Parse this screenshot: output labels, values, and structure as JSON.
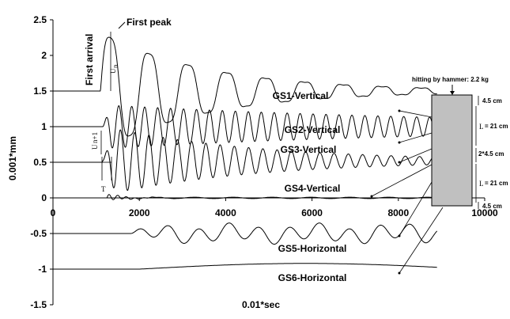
{
  "chart_data": {
    "type": "line",
    "xlabel": "0.01*sec",
    "ylabel": "0.001*mm",
    "xlim": [
      0,
      10000
    ],
    "ylim": [
      -1.5,
      2.5
    ],
    "x_ticks": [
      "0",
      "2000",
      "4000",
      "6000",
      "8000",
      "10000"
    ],
    "y_ticks": [
      "2.5",
      "2",
      "1.5",
      "1",
      "0.5",
      "0",
      "-0.5",
      "-1",
      "-1.5"
    ],
    "series": [
      {
        "name": "GS1-Vertical",
        "offset": 1.5,
        "onset": 1100,
        "x_end": 8900,
        "peak_amplitude": 0.9
      },
      {
        "name": "GS2-Vertical",
        "offset": 1.0,
        "onset": 1150,
        "x_end": 8900,
        "peak_amplitude": 0.3
      },
      {
        "name": "GS3-Vertical",
        "offset": 0.5,
        "onset": 1150,
        "x_end": 8900,
        "peak_amplitude": 0.45
      },
      {
        "name": "GS4-Vertical",
        "offset": 0.0,
        "onset": 1250,
        "x_end": 8900,
        "peak_amplitude": 0.05
      },
      {
        "name": "GS5-Horizontal",
        "offset": -0.5,
        "onset": 1800,
        "x_end": 8900,
        "peak_amplitude": 0.15
      },
      {
        "name": "GS6-Horizontal",
        "offset": -1.0,
        "onset": 2000,
        "x_end": 8900,
        "peak_amplitude": 0.08
      }
    ],
    "annotations": {
      "first_arrival": "First arrival",
      "first_peak": "First peak",
      "un": "U",
      "un_sub": "n",
      "un1": "U",
      "un1_sub": "n+1",
      "t": "T",
      "hammer": "hitting by hammer: 2.2 kg",
      "dim_top": "4.5 cm",
      "dim_L1": "L",
      "dim_L1_val": "= 21 cm",
      "dim_mid": "2*4.5 cm",
      "dim_L2": "L",
      "dim_L2_val": "= 21 cm",
      "dim_bottom": "4.5 cm"
    },
    "grid": false,
    "colors": {
      "line": "#000000",
      "block": "#c0c0c0"
    }
  }
}
